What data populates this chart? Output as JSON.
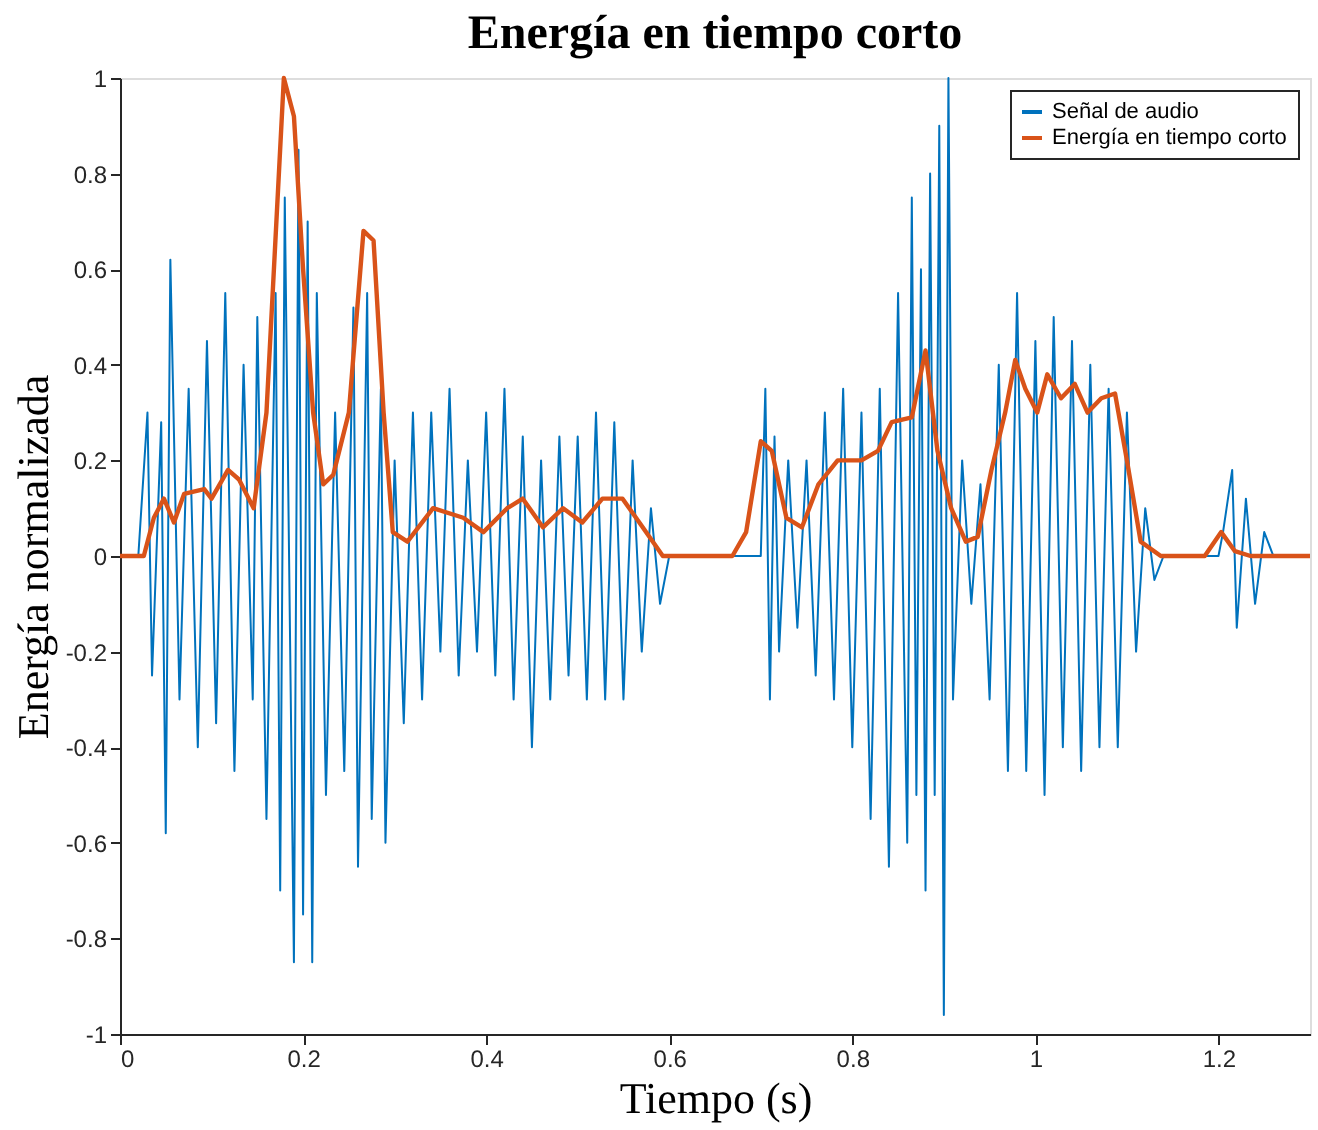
{
  "chart_data": {
    "type": "line",
    "title": "Energía en tiempo corto",
    "xlabel": "Tiempo (s)",
    "ylabel": "Energía normalizada",
    "xlim": [
      0,
      1.3
    ],
    "ylim": [
      -1,
      1
    ],
    "xticks": [
      0,
      0.2,
      0.4,
      0.6,
      0.8,
      1,
      1.2
    ],
    "yticks": [
      -1,
      -0.8,
      -0.6,
      -0.4,
      -0.2,
      0,
      0.2,
      0.4,
      0.6,
      0.8,
      1
    ],
    "grid": false,
    "legend": "top right",
    "line_style": "solid",
    "marker": "none",
    "series": [
      {
        "name": "Señal de audio",
        "color": "#0072bd",
        "x": [
          0,
          0.02,
          0.03,
          0.035,
          0.045,
          0.05,
          0.055,
          0.065,
          0.075,
          0.085,
          0.095,
          0.105,
          0.115,
          0.125,
          0.135,
          0.145,
          0.15,
          0.16,
          0.17,
          0.175,
          0.18,
          0.19,
          0.195,
          0.2,
          0.205,
          0.21,
          0.215,
          0.225,
          0.235,
          0.245,
          0.255,
          0.26,
          0.27,
          0.275,
          0.285,
          0.29,
          0.3,
          0.31,
          0.32,
          0.33,
          0.34,
          0.35,
          0.36,
          0.37,
          0.38,
          0.39,
          0.4,
          0.41,
          0.42,
          0.43,
          0.44,
          0.45,
          0.46,
          0.47,
          0.48,
          0.49,
          0.5,
          0.51,
          0.52,
          0.53,
          0.54,
          0.55,
          0.56,
          0.57,
          0.58,
          0.59,
          0.6,
          0.7,
          0.705,
          0.71,
          0.715,
          0.72,
          0.73,
          0.74,
          0.75,
          0.76,
          0.77,
          0.78,
          0.79,
          0.8,
          0.81,
          0.82,
          0.83,
          0.84,
          0.85,
          0.86,
          0.865,
          0.87,
          0.875,
          0.88,
          0.885,
          0.89,
          0.895,
          0.9,
          0.905,
          0.91,
          0.92,
          0.93,
          0.94,
          0.95,
          0.96,
          0.97,
          0.98,
          0.99,
          1.0,
          1.01,
          1.02,
          1.03,
          1.04,
          1.05,
          1.06,
          1.07,
          1.08,
          1.09,
          1.1,
          1.11,
          1.12,
          1.13,
          1.14,
          1.2,
          1.205,
          1.215,
          1.22,
          1.23,
          1.24,
          1.25,
          1.26,
          1.3
        ],
        "values": [
          0,
          0,
          0.3,
          -0.25,
          0.28,
          -0.58,
          0.62,
          -0.3,
          0.35,
          -0.4,
          0.45,
          -0.35,
          0.55,
          -0.45,
          0.4,
          -0.3,
          0.5,
          -0.55,
          0.55,
          -0.7,
          0.75,
          -0.85,
          0.85,
          -0.75,
          0.7,
          -0.85,
          0.55,
          -0.5,
          0.3,
          -0.45,
          0.52,
          -0.65,
          0.55,
          -0.55,
          0.35,
          -0.6,
          0.2,
          -0.35,
          0.3,
          -0.3,
          0.3,
          -0.2,
          0.35,
          -0.25,
          0.2,
          -0.2,
          0.3,
          -0.25,
          0.35,
          -0.3,
          0.25,
          -0.4,
          0.2,
          -0.3,
          0.25,
          -0.25,
          0.25,
          -0.3,
          0.3,
          -0.3,
          0.28,
          -0.3,
          0.2,
          -0.2,
          0.1,
          -0.1,
          0,
          0,
          0.35,
          -0.3,
          0.25,
          -0.2,
          0.2,
          -0.15,
          0.2,
          -0.25,
          0.3,
          -0.3,
          0.35,
          -0.4,
          0.3,
          -0.55,
          0.35,
          -0.65,
          0.55,
          -0.6,
          0.75,
          -0.5,
          0.6,
          -0.7,
          0.8,
          -0.5,
          0.9,
          -0.96,
          1.0,
          -0.3,
          0.2,
          -0.1,
          0.15,
          -0.3,
          0.4,
          -0.45,
          0.55,
          -0.45,
          0.45,
          -0.5,
          0.5,
          -0.4,
          0.45,
          -0.45,
          0.4,
          -0.4,
          0.35,
          -0.4,
          0.3,
          -0.2,
          0.1,
          -0.05,
          0,
          0,
          0.05,
          0.18,
          -0.15,
          0.12,
          -0.1,
          0.05,
          0,
          0
        ]
      },
      {
        "name": "Energía en tiempo corto",
        "color": "#d95319",
        "x": [
          0,
          0.026,
          0.037,
          0.048,
          0.059,
          0.07,
          0.092,
          0.1,
          0.118,
          0.13,
          0.146,
          0.16,
          0.179,
          0.19,
          0.2,
          0.211,
          0.222,
          0.233,
          0.25,
          0.266,
          0.277,
          0.288,
          0.298,
          0.314,
          0.342,
          0.375,
          0.397,
          0.423,
          0.44,
          0.462,
          0.484,
          0.505,
          0.527,
          0.549,
          0.571,
          0.593,
          0.669,
          0.684,
          0.7,
          0.712,
          0.728,
          0.745,
          0.763,
          0.784,
          0.81,
          0.828,
          0.843,
          0.865,
          0.88,
          0.893,
          0.908,
          0.924,
          0.937,
          0.952,
          0.967,
          0.978,
          0.989,
          1.002,
          1.013,
          1.028,
          1.043,
          1.057,
          1.072,
          1.087,
          1.1,
          1.115,
          1.137,
          1.185,
          1.203,
          1.218,
          1.235,
          1.3
        ],
        "values": [
          0,
          0,
          0.08,
          0.12,
          0.07,
          0.13,
          0.14,
          0.12,
          0.18,
          0.16,
          0.1,
          0.3,
          1.0,
          0.92,
          0.6,
          0.3,
          0.15,
          0.17,
          0.3,
          0.68,
          0.66,
          0.3,
          0.05,
          0.03,
          0.1,
          0.08,
          0.05,
          0.1,
          0.12,
          0.06,
          0.1,
          0.07,
          0.12,
          0.12,
          0.06,
          0,
          0,
          0.05,
          0.24,
          0.22,
          0.08,
          0.06,
          0.15,
          0.2,
          0.2,
          0.22,
          0.28,
          0.29,
          0.43,
          0.22,
          0.1,
          0.03,
          0.04,
          0.18,
          0.3,
          0.41,
          0.35,
          0.3,
          0.38,
          0.33,
          0.36,
          0.3,
          0.33,
          0.34,
          0.2,
          0.03,
          0,
          0,
          0.05,
          0.01,
          0,
          0
        ]
      }
    ]
  }
}
